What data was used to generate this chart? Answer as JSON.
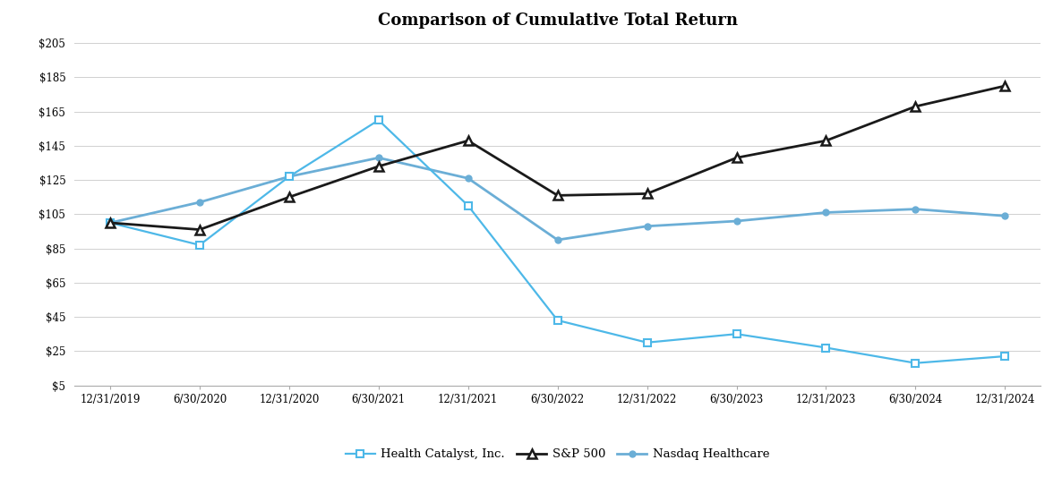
{
  "title": "Comparison of Cumulative Total Return",
  "x_labels": [
    "12/31/2019",
    "6/30/2020",
    "12/31/2020",
    "6/30/2021",
    "12/31/2021",
    "6/30/2022",
    "12/31/2022",
    "6/30/2023",
    "12/31/2023",
    "6/30/2024",
    "12/31/2024"
  ],
  "health_catalyst": [
    100,
    87,
    127,
    160,
    110,
    43,
    30,
    35,
    27,
    18,
    22
  ],
  "sp500": [
    100,
    96,
    115,
    133,
    148,
    116,
    117,
    138,
    148,
    168,
    180
  ],
  "nasdaq_healthcare": [
    100,
    112,
    127,
    138,
    126,
    90,
    98,
    101,
    106,
    108,
    104
  ],
  "health_catalyst_color": "#4db8e8",
  "sp500_color": "#1a1a1a",
  "nasdaq_color": "#6baed6",
  "ylim_min": 5,
  "ylim_max": 210,
  "yticks": [
    5,
    25,
    45,
    65,
    85,
    105,
    125,
    145,
    165,
    185,
    205
  ],
  "background_color": "#ffffff",
  "grid_color": "#d0d0d0",
  "title_fontsize": 13,
  "legend_labels": [
    "Health Catalyst, Inc.",
    "S&P 500",
    "Nasdaq Healthcare"
  ]
}
